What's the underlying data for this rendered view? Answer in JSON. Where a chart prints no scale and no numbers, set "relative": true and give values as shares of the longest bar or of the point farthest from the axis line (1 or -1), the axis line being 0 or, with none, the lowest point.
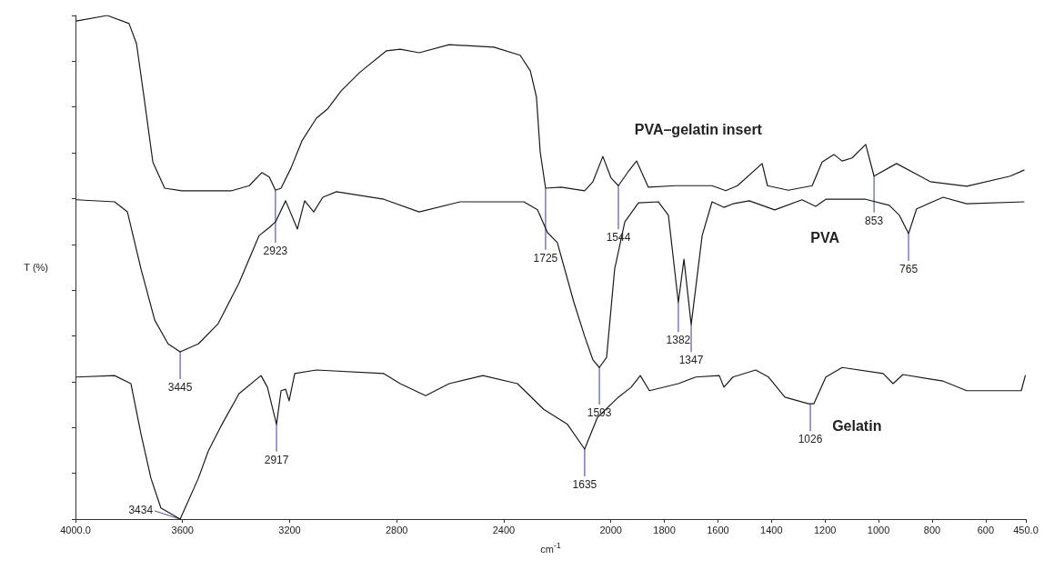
{
  "chart_data": {
    "type": "line",
    "relative": true,
    "xlabel": "cm$^{-1}$",
    "ylabel": "T (%)",
    "xlim": [
      4000,
      450
    ],
    "xticks": [
      {
        "value": 4000,
        "label": "4000.0"
      },
      3600,
      3200,
      2800,
      2400,
      2000,
      1800,
      1600,
      1400,
      1200,
      1000,
      800,
      600,
      {
        "value": 450,
        "label": "450.0"
      }
    ],
    "tick_labels": "x",
    "grid": false,
    "legend": false,
    "marker": "none",
    "line_style": "solid",
    "series": [
      {
        "name": "PVA–gelatin insert",
        "color": "#1a1a1a",
        "x": [
          3997,
          3881,
          3800,
          3772,
          3742,
          3711,
          3667,
          3603,
          3416,
          3351,
          3304,
          3276,
          3253,
          3232,
          3195,
          3154,
          3100,
          3059,
          3008,
          2940,
          2838,
          2787,
          2716,
          2604,
          2437,
          2339,
          2301,
          2278,
          2264,
          2244,
          2186,
          2098,
          2067,
          2030,
          1999,
          1972,
          1935,
          1904,
          1860,
          1758,
          1622,
          1571,
          1527,
          1435,
          1415,
          1337,
          1248,
          1211,
          1167,
          1136,
          1099,
          1048,
          1017,
          933,
          807,
          671,
          508,
          457
        ],
        "values": [
          0.989,
          1.0,
          0.984,
          0.944,
          0.83,
          0.709,
          0.657,
          0.652,
          0.652,
          0.662,
          0.688,
          0.679,
          0.653,
          0.657,
          0.697,
          0.751,
          0.796,
          0.814,
          0.85,
          0.886,
          0.93,
          0.933,
          0.926,
          0.942,
          0.937,
          0.921,
          0.89,
          0.838,
          0.729,
          0.657,
          0.659,
          0.652,
          0.67,
          0.72,
          0.677,
          0.662,
          0.69,
          0.711,
          0.659,
          0.662,
          0.662,
          0.652,
          0.662,
          0.706,
          0.662,
          0.653,
          0.662,
          0.709,
          0.724,
          0.711,
          0.717,
          0.744,
          0.681,
          0.706,
          0.67,
          0.661,
          0.681,
          0.693
        ]
      },
      {
        "name": "PVA",
        "color": "#1a1a1a",
        "x": [
          3997,
          3854,
          3806,
          3755,
          3704,
          3654,
          3609,
          3541,
          3467,
          3389,
          3314,
          3276,
          3253,
          3215,
          3171,
          3144,
          3110,
          3076,
          3025,
          2848,
          2716,
          2563,
          2325,
          2274,
          2237,
          2200,
          2138,
          2098,
          2067,
          2043,
          2016,
          1986,
          1948,
          1897,
          1823,
          1785,
          1748,
          1727,
          1700,
          1659,
          1622,
          1578,
          1544,
          1483,
          1388,
          1286,
          1235,
          1197,
          1048,
          960,
          922,
          888,
          858,
          759,
          671,
          457
        ],
        "values": [
          0.634,
          0.63,
          0.61,
          0.496,
          0.395,
          0.348,
          0.332,
          0.348,
          0.388,
          0.469,
          0.563,
          0.579,
          0.59,
          0.632,
          0.576,
          0.632,
          0.61,
          0.639,
          0.65,
          0.635,
          0.61,
          0.63,
          0.63,
          0.614,
          0.569,
          0.549,
          0.43,
          0.363,
          0.316,
          0.301,
          0.321,
          0.496,
          0.59,
          0.628,
          0.63,
          0.603,
          0.43,
          0.516,
          0.386,
          0.563,
          0.63,
          0.619,
          0.626,
          0.632,
          0.614,
          0.634,
          0.621,
          0.635,
          0.635,
          0.623,
          0.603,
          0.567,
          0.616,
          0.639,
          0.626,
          0.63
        ]
      },
      {
        "name": "Gelatin",
        "color": "#1a1a1a",
        "x": [
          3997,
          3854,
          3793,
          3755,
          3718,
          3681,
          3609,
          3541,
          3504,
          3453,
          3389,
          3307,
          3283,
          3249,
          3232,
          3215,
          3202,
          3181,
          3100,
          2848,
          2787,
          2692,
          2604,
          2478,
          2349,
          2251,
          2162,
          2098,
          2050,
          1972,
          1924,
          1890,
          1856,
          1748,
          1683,
          1595,
          1578,
          1544,
          1459,
          1411,
          1350,
          1262,
          1242,
          1197,
          1136,
          983,
          946,
          909,
          759,
          671,
          467,
          452
        ],
        "values": [
          0.282,
          0.285,
          0.269,
          0.168,
          0.081,
          0.022,
          0,
          0.081,
          0.135,
          0.188,
          0.249,
          0.285,
          0.262,
          0.188,
          0.255,
          0.258,
          0.235,
          0.289,
          0.296,
          0.289,
          0.269,
          0.245,
          0.269,
          0.285,
          0.269,
          0.218,
          0.188,
          0.139,
          0.202,
          0.242,
          0.262,
          0.285,
          0.255,
          0.269,
          0.282,
          0.285,
          0.262,
          0.282,
          0.296,
          0.282,
          0.242,
          0.229,
          0.229,
          0.282,
          0.301,
          0.289,
          0.269,
          0.287,
          0.274,
          0.255,
          0.255,
          0.285
        ]
      }
    ],
    "annotations": [
      {
        "text": "1725",
        "x": 2244,
        "y": 0.657
      },
      {
        "text": "2923",
        "x": 3253,
        "y": 0.653
      },
      {
        "text": "1544",
        "x": 1972,
        "y": 0.662
      },
      {
        "text": "853",
        "x": 1017,
        "y": 0.681
      },
      {
        "text": "3445",
        "x": 3609,
        "y": 0.332
      },
      {
        "text": "1593",
        "x": 2043,
        "y": 0.301
      },
      {
        "text": "1382",
        "x": 1748,
        "y": 0.43
      },
      {
        "text": "1347",
        "x": 1700,
        "y": 0.386
      },
      {
        "text": "765",
        "x": 888,
        "y": 0.567
      },
      {
        "text": "3434",
        "x": 3609,
        "y": 0
      },
      {
        "text": "2917",
        "x": 3249,
        "y": 0.188
      },
      {
        "text": "1635",
        "x": 2098,
        "y": 0.139
      },
      {
        "text": "1026",
        "x": 1255,
        "y": 0.229
      }
    ]
  }
}
